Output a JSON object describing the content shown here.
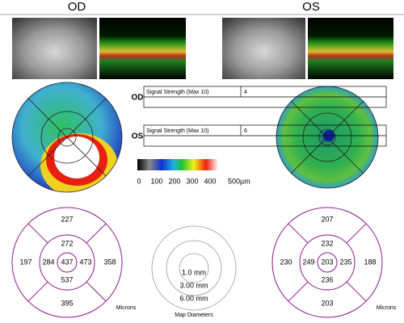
{
  "eyes": [
    {
      "label": "OD",
      "signal": {
        "label": "Signal Strength (Max 10)",
        "value": 4
      },
      "thickness": {
        "outer_top": 227,
        "inner_top": 272,
        "outer_left": 197,
        "inner_left": 284,
        "center": 437,
        "inner_right": 473,
        "outer_right": 358,
        "inner_bottom": 537,
        "outer_bottom": 395
      },
      "units": "Microns"
    },
    {
      "label": "OS",
      "signal": {
        "label": "Signal Strength (Max 10)",
        "value": 6
      },
      "thickness": {
        "outer_top": 207,
        "inner_top": 232,
        "outer_left": 230,
        "inner_left": 249,
        "center": 203,
        "inner_right": 235,
        "outer_right": 188,
        "inner_bottom": 236,
        "outer_bottom": 203
      },
      "units": "Microns"
    }
  ],
  "color_scale": {
    "labels": [
      "0",
      "100",
      "200",
      "300",
      "400",
      "500µm"
    ]
  },
  "map_diameters": {
    "rings": [
      "1.0 mm",
      "3.00 mm",
      "6.00 mm"
    ],
    "title": "Map Diameters"
  }
}
